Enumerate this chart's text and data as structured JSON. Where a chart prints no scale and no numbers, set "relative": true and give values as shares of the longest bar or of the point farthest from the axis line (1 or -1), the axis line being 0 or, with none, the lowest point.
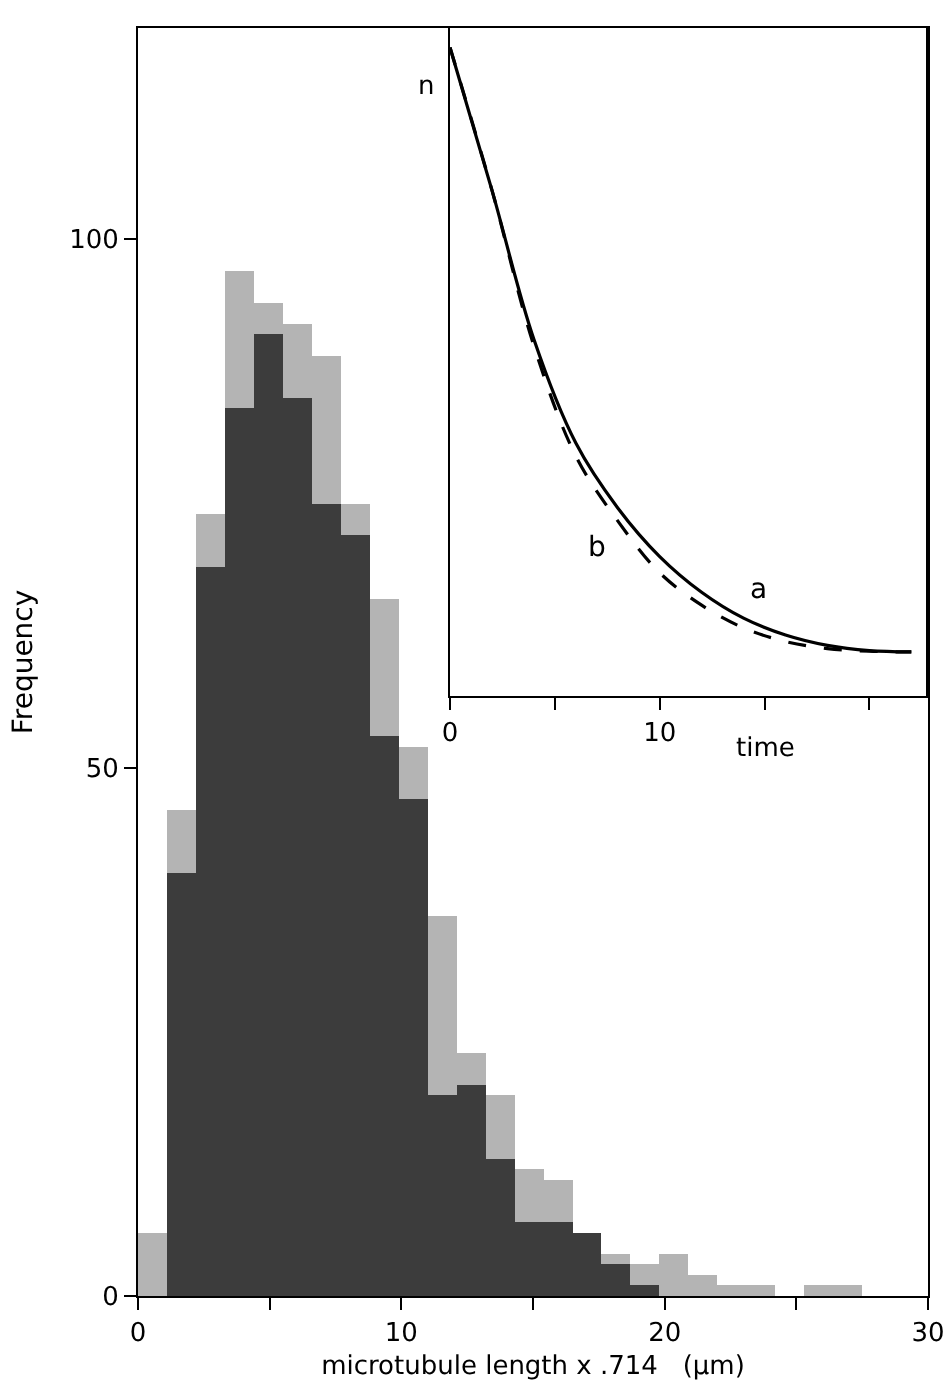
{
  "chart_data": [
    {
      "type": "bar",
      "ylabel": "Frequency",
      "xlabel": "microtubule length x .714   (μm)",
      "x": [
        0.55,
        1.65,
        2.75,
        3.85,
        4.95,
        6.05,
        7.15,
        8.25,
        9.35,
        10.45,
        11.55,
        12.65,
        13.75,
        14.85,
        15.95,
        17.05,
        18.15,
        19.25,
        20.35,
        21.45,
        22.55,
        23.65,
        24.75,
        25.85,
        26.95,
        28.05
      ],
      "stacked": true,
      "series": [
        {
          "color": "#3c3c3c",
          "values": [
            0,
            40,
            69,
            84,
            91,
            85,
            75,
            72,
            53,
            47,
            19,
            20,
            13,
            7,
            7,
            6,
            3,
            1,
            0,
            0,
            0,
            0,
            0,
            0,
            0,
            0
          ]
        },
        {
          "color": "#b4b4b4",
          "values": [
            6,
            6,
            5,
            13,
            3,
            7,
            14,
            3,
            13,
            5,
            17,
            3,
            6,
            5,
            4,
            0,
            1,
            2,
            4,
            2,
            1,
            1,
            0,
            1,
            1,
            0
          ]
        }
      ],
      "xlim": [
        0,
        30
      ],
      "xticks": [
        0,
        {
          "value": 5,
          "label": null
        },
        10,
        {
          "value": 15,
          "label": null
        },
        20,
        {
          "value": 25,
          "label": null
        },
        30
      ],
      "ylim": [
        0,
        120
      ],
      "yticks": [
        0,
        50,
        100
      ],
      "grid": false
    },
    {
      "type": "line",
      "relative": true,
      "ylabel": "n",
      "xlabel": "time",
      "x": [
        0,
        2,
        4,
        6,
        8,
        10,
        12,
        14,
        16,
        18,
        20,
        22
      ],
      "series": [
        {
          "name": "a",
          "color": "#000000",
          "line_style": "solid",
          "values": [
            1,
            0.78,
            0.55,
            0.39,
            0.29,
            0.215,
            0.16,
            0.12,
            0.094,
            0.078,
            0.07,
            0.068
          ]
        },
        {
          "name": "b",
          "color": "#000000",
          "line_style": "dashed",
          "values": [
            1,
            0.78,
            0.54,
            0.37,
            0.27,
            0.19,
            0.14,
            0.105,
            0.084,
            0.073,
            0.069,
            0.068
          ]
        }
      ],
      "xlim": [
        0,
        22.7
      ],
      "xticks": [
        0,
        {
          "value": 5,
          "label": null
        },
        10,
        {
          "value": 15,
          "label": null
        },
        {
          "value": 20,
          "label": null
        }
      ],
      "grid": false,
      "marker": "none"
    }
  ]
}
